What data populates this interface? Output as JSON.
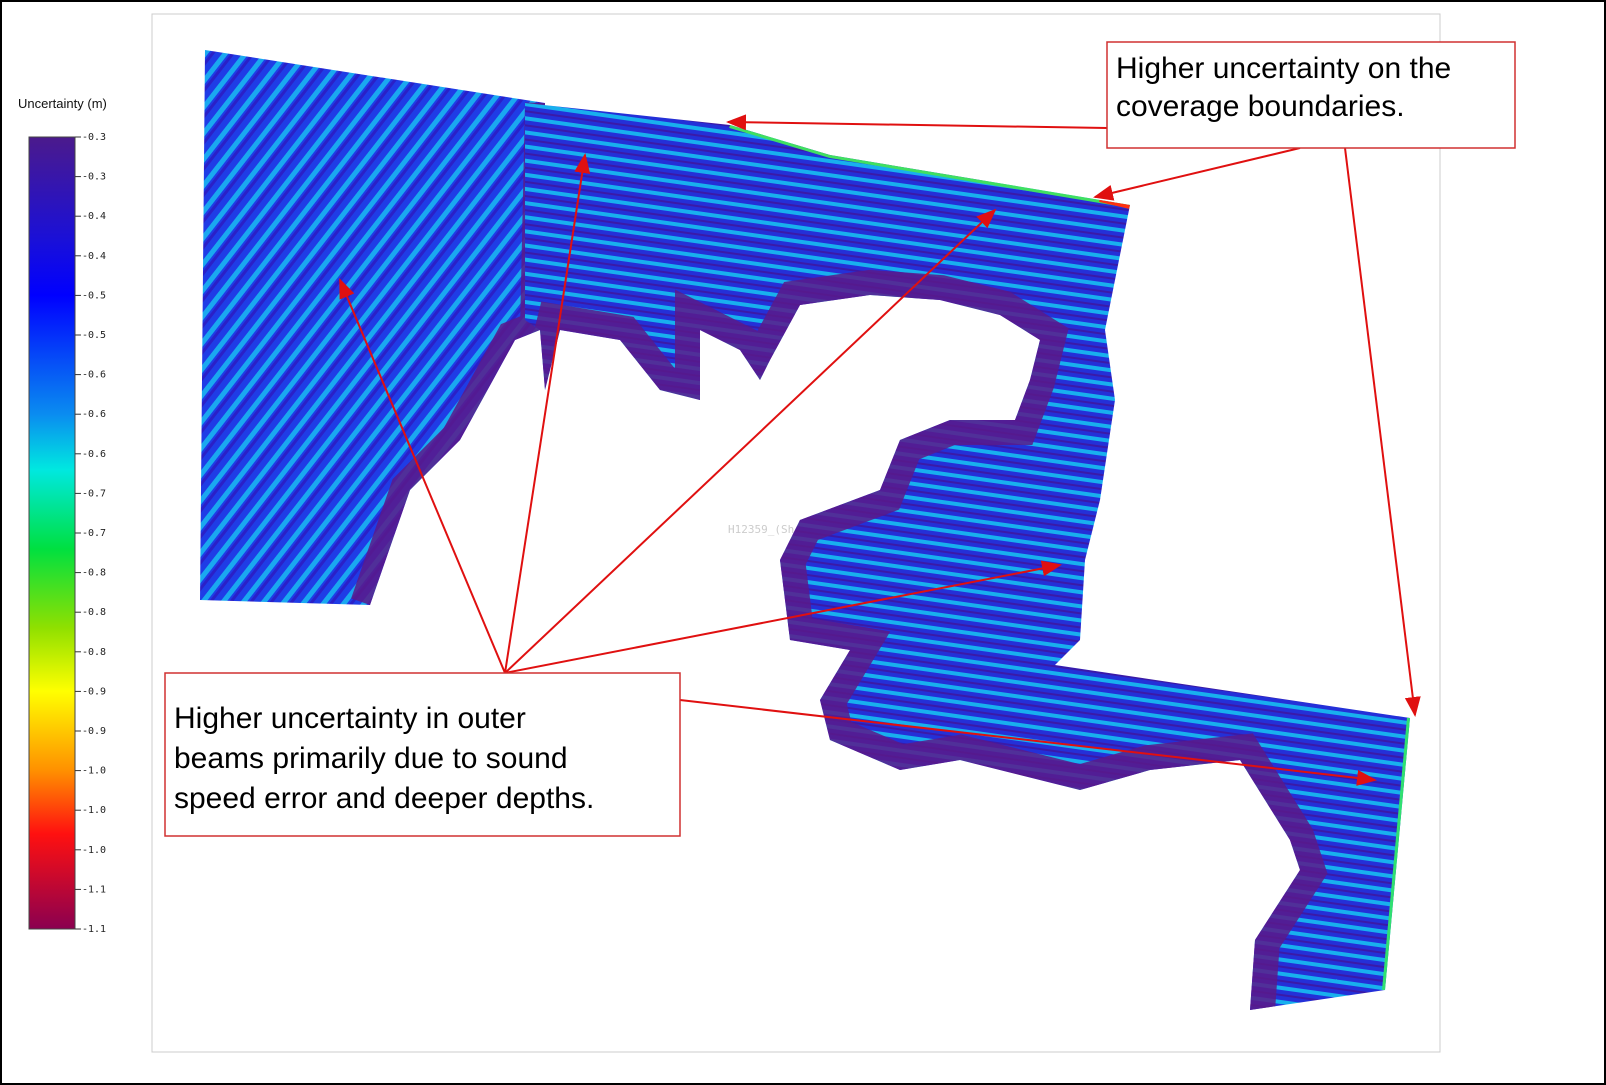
{
  "legend": {
    "title": "Uncertainty (m)",
    "ticks": [
      "-0.3",
      "-0.3",
      "-0.4",
      "-0.4",
      "-0.5",
      "-0.5",
      "-0.6",
      "-0.6",
      "-0.6",
      "-0.7",
      "-0.7",
      "-0.8",
      "-0.8",
      "-0.8",
      "-0.9",
      "-0.9",
      "-1.0",
      "-1.0",
      "-1.0",
      "-1.1",
      "-1.1"
    ]
  },
  "map": {
    "watermark": "H12359_(Sh"
  },
  "annotations": [
    {
      "lines": [
        "Higher uncertainty on the",
        "coverage boundaries."
      ]
    },
    {
      "lines": [
        "Higher uncertainty in outer",
        "beams primarily due to sound",
        "speed error and deeper depths."
      ]
    }
  ]
}
